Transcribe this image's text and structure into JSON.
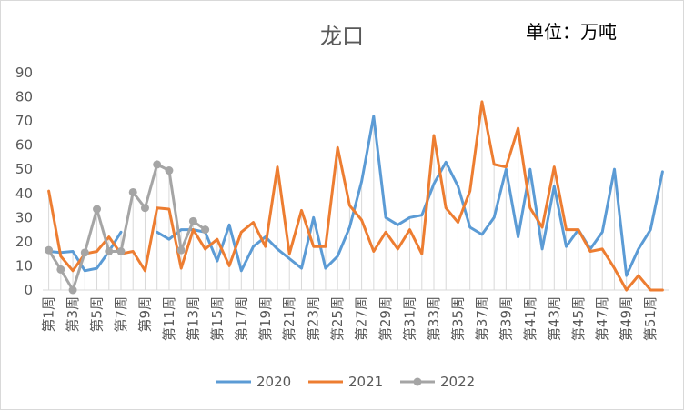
{
  "title": "龙口",
  "unit_label": "单位：万吨",
  "chart_data": {
    "type": "line",
    "title": "龙口",
    "unit": "单位：万吨",
    "x": [
      "第1周",
      "第2周",
      "第3周",
      "第4周",
      "第5周",
      "第6周",
      "第7周",
      "第8周",
      "第9周",
      "第10周",
      "第11周",
      "第12周",
      "第13周",
      "第14周",
      "第15周",
      "第16周",
      "第17周",
      "第18周",
      "第19周",
      "第20周",
      "第21周",
      "第22周",
      "第23周",
      "第24周",
      "第25周",
      "第26周",
      "第27周",
      "第28周",
      "第29周",
      "第30周",
      "第31周",
      "第32周",
      "第33周",
      "第34周",
      "第35周",
      "第36周",
      "第37周",
      "第38周",
      "第39周",
      "第40周",
      "第41周",
      "第42周",
      "第43周",
      "第44周",
      "第45周",
      "第46周",
      "第47周",
      "第48周",
      "第49周",
      "第50周",
      "第51周",
      "第52周"
    ],
    "x_tick_labels": [
      "第1周",
      "第3周",
      "第5周",
      "第7周",
      "第9周",
      "第11周",
      "第13周",
      "第15周",
      "第17周",
      "第19周",
      "第21周",
      "第23周",
      "第25周",
      "第27周",
      "第29周",
      "第31周",
      "第33周",
      "第35周",
      "第37周",
      "第39周",
      "第41周",
      "第43周",
      "第45周",
      "第47周",
      "第49周",
      "第51周"
    ],
    "ylim": [
      0,
      90
    ],
    "yticks": [
      0,
      10,
      20,
      30,
      40,
      50,
      60,
      70,
      80,
      90
    ],
    "grid": "vertical drop lines",
    "legend_position": "bottom",
    "series": [
      {
        "name": "2020",
        "color": "#5b9bd5",
        "values": [
          16,
          15.5,
          16,
          8,
          9,
          16,
          24,
          null,
          null,
          24,
          21,
          25,
          25,
          24,
          12,
          27,
          8,
          18,
          22,
          17,
          13,
          9,
          30,
          9,
          14,
          26,
          45,
          72,
          30,
          27,
          30,
          31,
          44,
          53,
          43,
          26,
          23,
          30,
          50,
          22,
          50,
          17,
          43,
          18,
          25,
          17,
          24,
          50,
          6,
          17,
          25,
          49
        ]
      },
      {
        "name": "2021",
        "color": "#ed7d31",
        "values": [
          41,
          14,
          8,
          15,
          16,
          22,
          15,
          16,
          8,
          34,
          33.5,
          9,
          25,
          17,
          21,
          10,
          24,
          28,
          18,
          51,
          15,
          33,
          18,
          18,
          59,
          35,
          29,
          16,
          24,
          17,
          25,
          15,
          64,
          34,
          28,
          41,
          78,
          52,
          51,
          67,
          34,
          26,
          51,
          25,
          25,
          16,
          17,
          9,
          0,
          6,
          0,
          0
        ]
      },
      {
        "name": "2022",
        "color": "#a5a5a5",
        "values": [
          16.5,
          8.5,
          0,
          15.5,
          33.5,
          16,
          16,
          40.5,
          34,
          52,
          49.5,
          16.5,
          28.5,
          25,
          null,
          null,
          null,
          null,
          null,
          null,
          null,
          null,
          null,
          null,
          null,
          null,
          null,
          null,
          null,
          null,
          null,
          null,
          null,
          null,
          null,
          null,
          null,
          null,
          null,
          null,
          null,
          null,
          null,
          null,
          null,
          null,
          null,
          null,
          null,
          null,
          null,
          null
        ]
      }
    ]
  }
}
